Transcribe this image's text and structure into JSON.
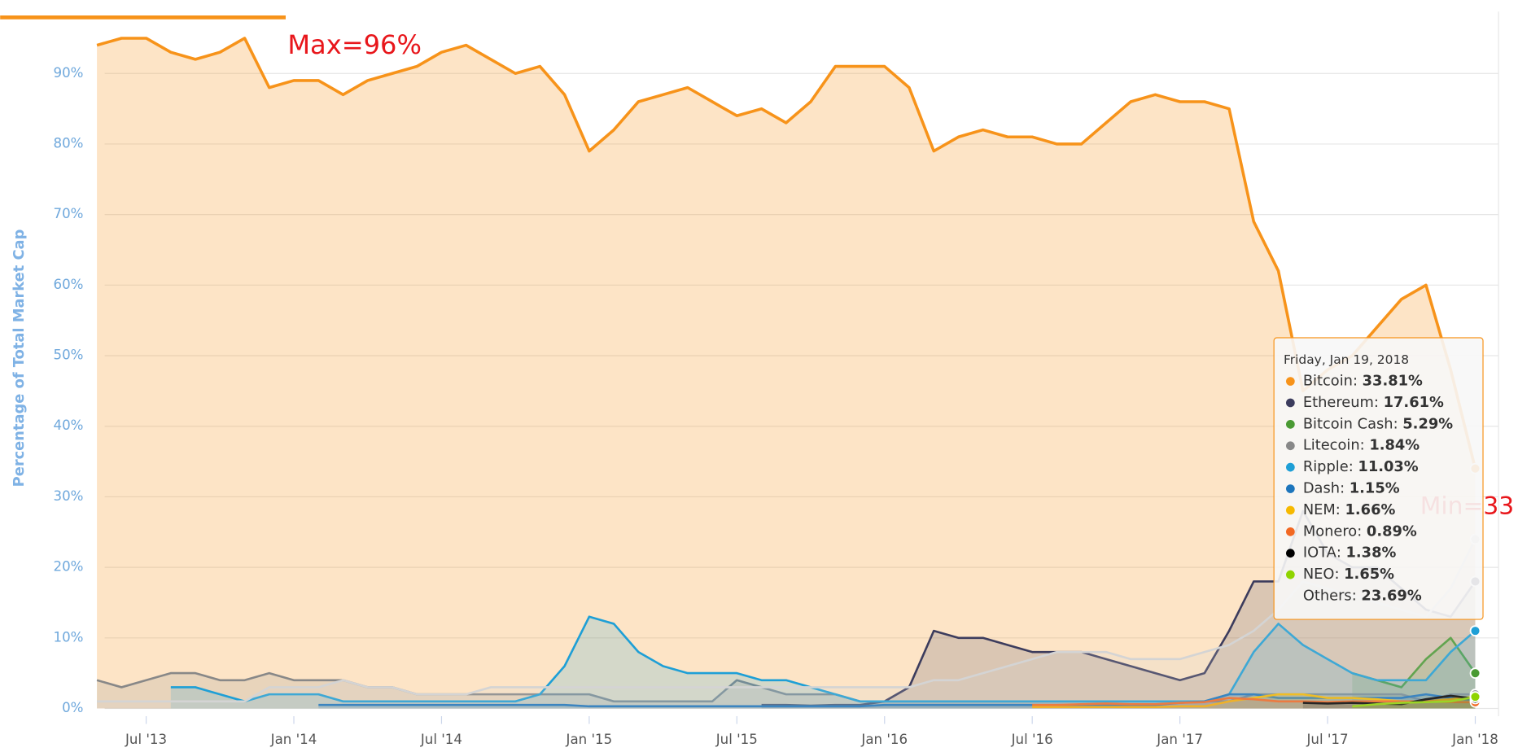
{
  "chart_data": {
    "type": "area",
    "y_label": "Percentage of Total Market Cap",
    "xlim": [
      "2013-05",
      "2018-01"
    ],
    "ylim": [
      0,
      100
    ],
    "yticks": [
      {
        "value": 0,
        "label": "0%"
      },
      {
        "value": 10,
        "label": "10%"
      },
      {
        "value": 20,
        "label": "20%"
      },
      {
        "value": 30,
        "label": "30%"
      },
      {
        "value": 40,
        "label": "40%"
      },
      {
        "value": 50,
        "label": "50%"
      },
      {
        "value": 60,
        "label": "60%"
      },
      {
        "value": 70,
        "label": "70%"
      },
      {
        "value": 80,
        "label": "80%"
      },
      {
        "value": 90,
        "label": "90%"
      }
    ],
    "xticks": [
      {
        "value": "2013-07",
        "label": "Jul '13"
      },
      {
        "value": "2014-01",
        "label": "Jan '14"
      },
      {
        "value": "2014-07",
        "label": "Jul '14"
      },
      {
        "value": "2015-01",
        "label": "Jan '15"
      },
      {
        "value": "2015-07",
        "label": "Jul '15"
      },
      {
        "value": "2016-01",
        "label": "Jan '16"
      },
      {
        "value": "2016-07",
        "label": "Jul '16"
      },
      {
        "value": "2017-01",
        "label": "Jan '17"
      },
      {
        "value": "2017-07",
        "label": "Jul '17"
      },
      {
        "value": "2018-01",
        "label": "Jan '18"
      }
    ],
    "grid": true,
    "annotations": [
      "Max=96%",
      "Min=33"
    ],
    "x": [
      "2013-05",
      "2013-06",
      "2013-07",
      "2013-08",
      "2013-09",
      "2013-10",
      "2013-11",
      "2013-12",
      "2014-01",
      "2014-02",
      "2014-03",
      "2014-04",
      "2014-05",
      "2014-06",
      "2014-07",
      "2014-08",
      "2014-09",
      "2014-10",
      "2014-11",
      "2014-12",
      "2015-01",
      "2015-02",
      "2015-03",
      "2015-04",
      "2015-05",
      "2015-06",
      "2015-07",
      "2015-08",
      "2015-09",
      "2015-10",
      "2015-11",
      "2015-12",
      "2016-01",
      "2016-02",
      "2016-03",
      "2016-04",
      "2016-05",
      "2016-06",
      "2016-07",
      "2016-08",
      "2016-09",
      "2016-10",
      "2016-11",
      "2016-12",
      "2017-01",
      "2017-02",
      "2017-03",
      "2017-04",
      "2017-05",
      "2017-06",
      "2017-07",
      "2017-08",
      "2017-09",
      "2017-10",
      "2017-11",
      "2017-12",
      "2018-01"
    ],
    "tooltip_title": "Friday, Jan 19, 2018",
    "series": [
      {
        "name": "Bitcoin",
        "color": "#f7931a",
        "tooltip_value": 33.81,
        "tooltip_label": "33.81%",
        "values": [
          94,
          95,
          95,
          93,
          92,
          93,
          95,
          88,
          89,
          89,
          87,
          89,
          90,
          91,
          93,
          94,
          92,
          90,
          91,
          87,
          79,
          82,
          86,
          87,
          88,
          86,
          84,
          85,
          83,
          86,
          91,
          91,
          91,
          88,
          79,
          81,
          82,
          81,
          81,
          80,
          80,
          83,
          86,
          87,
          86,
          86,
          85,
          69,
          62,
          45,
          48,
          50,
          54,
          58,
          60,
          48,
          34
        ]
      },
      {
        "name": "Ethereum",
        "color": "#3c3c5d",
        "tooltip_value": 17.61,
        "tooltip_label": "17.61%",
        "values": [
          null,
          null,
          null,
          null,
          null,
          null,
          null,
          null,
          null,
          null,
          null,
          null,
          null,
          null,
          null,
          null,
          null,
          null,
          null,
          null,
          null,
          null,
          null,
          null,
          null,
          null,
          null,
          0.5,
          0.5,
          0.4,
          0.5,
          0.5,
          1,
          3,
          11,
          10,
          10,
          9,
          8,
          8,
          8,
          7,
          6,
          5,
          4,
          5,
          11,
          18,
          18,
          28,
          22,
          20,
          20,
          17,
          14,
          13,
          18
        ]
      },
      {
        "name": "Bitcoin Cash",
        "color": "#4a9a33",
        "tooltip_value": 5.29,
        "tooltip_label": "5.29%",
        "values": [
          null,
          null,
          null,
          null,
          null,
          null,
          null,
          null,
          null,
          null,
          null,
          null,
          null,
          null,
          null,
          null,
          null,
          null,
          null,
          null,
          null,
          null,
          null,
          null,
          null,
          null,
          null,
          null,
          null,
          null,
          null,
          null,
          null,
          null,
          null,
          null,
          null,
          null,
          null,
          null,
          null,
          null,
          null,
          null,
          null,
          null,
          null,
          null,
          null,
          null,
          null,
          5,
          4,
          3,
          7,
          10,
          5
        ]
      },
      {
        "name": "Litecoin",
        "color": "#888888",
        "tooltip_value": 1.84,
        "tooltip_label": "1.84%",
        "values": [
          4,
          3,
          4,
          5,
          5,
          4,
          4,
          5,
          4,
          4,
          4,
          3,
          3,
          2,
          2,
          2,
          2,
          2,
          2,
          2,
          2,
          1,
          1,
          1,
          1,
          1,
          4,
          3,
          2,
          2,
          2,
          1,
          1,
          1,
          1,
          1,
          1,
          1,
          1,
          1,
          1,
          1,
          1,
          1,
          1,
          1,
          1,
          2,
          2,
          2,
          2,
          2,
          2,
          2,
          1,
          2,
          2
        ]
      },
      {
        "name": "Ripple",
        "color": "#1e9fd6",
        "tooltip_value": 11.03,
        "tooltip_label": "11.03%",
        "values": [
          null,
          null,
          null,
          3,
          3,
          2,
          1,
          2,
          2,
          2,
          1,
          1,
          1,
          1,
          1,
          1,
          1,
          1,
          2,
          6,
          13,
          12,
          8,
          6,
          5,
          5,
          5,
          4,
          4,
          3,
          2,
          1,
          1,
          1,
          1,
          1,
          1,
          1,
          1,
          1,
          1,
          1,
          1,
          1,
          1,
          1,
          2,
          8,
          12,
          9,
          7,
          5,
          4,
          4,
          4,
          8,
          11
        ]
      },
      {
        "name": "Dash",
        "color": "#1c75bc",
        "tooltip_value": 1.15,
        "tooltip_label": "1.15%",
        "values": [
          null,
          null,
          null,
          null,
          null,
          null,
          null,
          null,
          null,
          0.5,
          0.5,
          0.5,
          0.5,
          0.5,
          0.5,
          0.5,
          0.5,
          0.5,
          0.5,
          0.5,
          0.3,
          0.3,
          0.3,
          0.3,
          0.3,
          0.3,
          0.3,
          0.3,
          0.3,
          0.3,
          0.3,
          0.3,
          0.5,
          0.5,
          0.5,
          0.5,
          0.5,
          0.5,
          0.5,
          0.5,
          0.5,
          0.5,
          0.5,
          0.5,
          0.8,
          1,
          2,
          2,
          1.5,
          1.5,
          1.5,
          1.5,
          1.5,
          1.5,
          2,
          1.5,
          1.15
        ]
      },
      {
        "name": "NEM",
        "color": "#f6b900",
        "tooltip_value": 1.66,
        "tooltip_label": "1.66%",
        "values": [
          null,
          null,
          null,
          null,
          null,
          null,
          null,
          null,
          null,
          null,
          null,
          null,
          null,
          null,
          null,
          null,
          null,
          null,
          null,
          null,
          null,
          null,
          null,
          null,
          null,
          null,
          null,
          null,
          null,
          null,
          null,
          null,
          null,
          null,
          null,
          null,
          null,
          null,
          0.2,
          0.2,
          0.2,
          0.2,
          0.2,
          0.2,
          0.3,
          0.3,
          1,
          1.5,
          2,
          2,
          1.5,
          1.5,
          1.3,
          1,
          1,
          1.3,
          1.66
        ]
      },
      {
        "name": "Monero",
        "color": "#f26822",
        "tooltip_value": 0.89,
        "tooltip_label": "0.89%",
        "values": [
          null,
          null,
          null,
          null,
          null,
          null,
          null,
          null,
          null,
          null,
          null,
          null,
          null,
          null,
          null,
          null,
          null,
          null,
          null,
          null,
          null,
          null,
          null,
          null,
          null,
          null,
          null,
          null,
          null,
          null,
          null,
          null,
          null,
          null,
          null,
          null,
          null,
          null,
          0.5,
          0.5,
          0.6,
          0.7,
          0.6,
          0.6,
          0.8,
          0.9,
          1.5,
          1.3,
          1,
          1,
          0.9,
          1,
          1,
          1,
          1,
          0.9,
          0.89
        ]
      },
      {
        "name": "IOTA",
        "color": "#000000",
        "tooltip_value": 1.38,
        "tooltip_label": "1.38%",
        "values": [
          null,
          null,
          null,
          null,
          null,
          null,
          null,
          null,
          null,
          null,
          null,
          null,
          null,
          null,
          null,
          null,
          null,
          null,
          null,
          null,
          null,
          null,
          null,
          null,
          null,
          null,
          null,
          null,
          null,
          null,
          null,
          null,
          null,
          null,
          null,
          null,
          null,
          null,
          null,
          null,
          null,
          null,
          null,
          null,
          null,
          null,
          null,
          null,
          null,
          0.8,
          0.7,
          0.8,
          0.7,
          0.6,
          1.3,
          1.8,
          1.38
        ]
      },
      {
        "name": "NEO",
        "color": "#8fd400",
        "tooltip_value": 1.65,
        "tooltip_label": "1.65%",
        "values": [
          null,
          null,
          null,
          null,
          null,
          null,
          null,
          null,
          null,
          null,
          null,
          null,
          null,
          null,
          null,
          null,
          null,
          null,
          null,
          null,
          null,
          null,
          null,
          null,
          null,
          null,
          null,
          null,
          null,
          null,
          null,
          null,
          null,
          null,
          null,
          null,
          null,
          null,
          null,
          null,
          null,
          null,
          null,
          null,
          null,
          null,
          null,
          null,
          null,
          null,
          null,
          0.3,
          0.6,
          0.8,
          0.9,
          1,
          1.65
        ]
      },
      {
        "name": "Others",
        "color": "#d4d4d4",
        "tooltip_value": 23.69,
        "tooltip_label": "23.69%",
        "legend_marker": false,
        "values": [
          1,
          1,
          1,
          1,
          1,
          1,
          1,
          3,
          3,
          3,
          4,
          3,
          3,
          2,
          2,
          2,
          3,
          3,
          3,
          3,
          3,
          3,
          3,
          3,
          3,
          3,
          3,
          3,
          3,
          3,
          3,
          3,
          3,
          3,
          4,
          4,
          5,
          6,
          7,
          8,
          8,
          8,
          7,
          7,
          7,
          8,
          9,
          11,
          14,
          18,
          17,
          16,
          15,
          14,
          13,
          17,
          24
        ]
      }
    ]
  }
}
